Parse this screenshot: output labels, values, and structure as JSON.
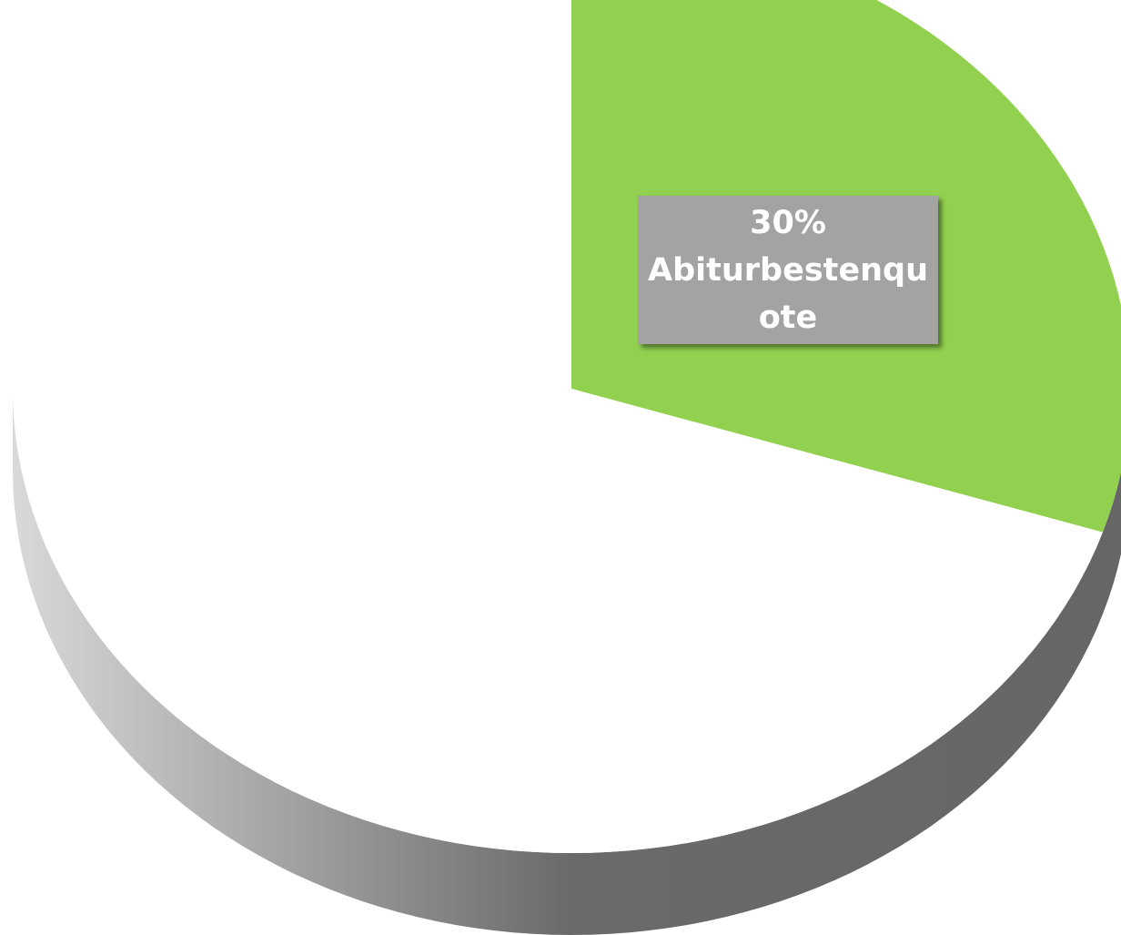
{
  "chart_data": {
    "type": "pie",
    "three_d": true,
    "slices": [
      {
        "value": 30,
        "label_value": "30%",
        "label_name": "Abiturbestenquote",
        "color": "#92d050",
        "data_label_shown": true
      },
      {
        "value": 70,
        "color": "#ffffff",
        "data_label_shown": false
      }
    ],
    "side_shading": {
      "light": "#d9d9d9",
      "dark": "#666666"
    },
    "label_box_color": "#a3a3a3",
    "label_text_color": "#ffffff"
  }
}
